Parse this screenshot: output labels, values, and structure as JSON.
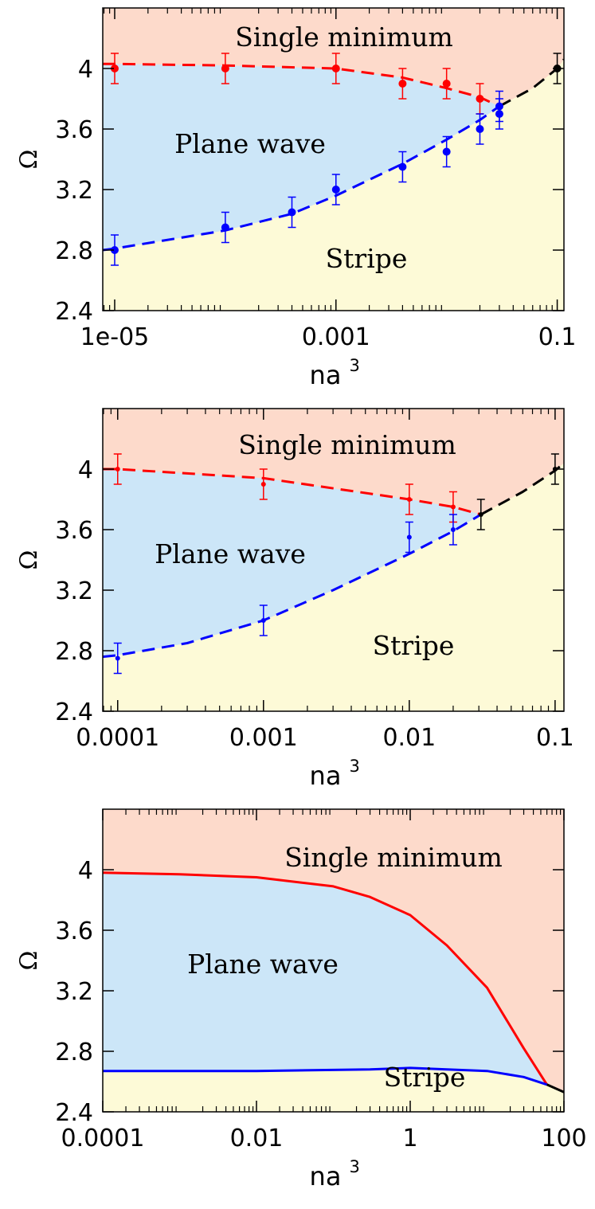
{
  "colors": {
    "single_minimum": "#FDDACB",
    "plane_wave": "#CCE6F8",
    "stripe": "#FDFAD7",
    "red": "#FF0000",
    "blue": "#0000FF",
    "black": "#000000"
  },
  "chart_data": [
    {
      "type": "scatter",
      "title": "",
      "xlabel": "na",
      "xlabel_sup": "3",
      "ylabel": "Ω",
      "xscale": "log",
      "xlim": [
        7.8e-06,
        0.115
      ],
      "ylim": [
        2.4,
        4.4
      ],
      "xticks": [
        1e-05,
        0.001,
        0.1
      ],
      "xtick_labels": [
        "1e-05",
        "0.001",
        "0.1"
      ],
      "yticks": [
        2.4,
        2.8,
        3.2,
        3.6,
        4
      ],
      "ytick_labels": [
        "2.4",
        "2.8",
        "3.2",
        "3.6",
        "4"
      ],
      "regions": {
        "top": "Single minimum",
        "middle": "Plane wave",
        "bottom": "Stripe"
      },
      "boundary_style": "dashed",
      "boundaries": {
        "upper": {
          "x": [
            7.8e-06,
            1e-05,
            0.0001,
            0.001,
            0.004,
            0.01,
            0.02,
            0.03
          ],
          "y": [
            4.03,
            4.03,
            4.02,
            4.0,
            3.94,
            3.87,
            3.81,
            3.75
          ]
        },
        "lower": {
          "x": [
            7.8e-06,
            1e-05,
            0.0001,
            0.0004,
            0.001,
            0.004,
            0.01,
            0.02,
            0.03
          ],
          "y": [
            2.8,
            2.81,
            2.93,
            3.04,
            3.16,
            3.37,
            3.53,
            3.66,
            3.75
          ]
        },
        "merged": {
          "x": [
            0.03,
            0.06,
            0.1,
            0.115
          ],
          "y": [
            3.75,
            3.87,
            4.0,
            4.06
          ]
        }
      },
      "series": [
        {
          "name": "upper",
          "color": "red",
          "x": [
            1e-05,
            0.0001,
            0.001,
            0.004,
            0.01,
            0.02
          ],
          "y": [
            4.0,
            4.0,
            4.0,
            3.9,
            3.9,
            3.8
          ],
          "err": [
            0.1,
            0.1,
            0.1,
            0.1,
            0.1,
            0.1
          ],
          "marker_r": 5
        },
        {
          "name": "lower",
          "color": "blue",
          "x": [
            1e-05,
            0.0001,
            0.0004,
            0.001,
            0.004,
            0.01,
            0.02,
            0.03,
            0.03
          ],
          "y": [
            2.8,
            2.95,
            3.05,
            3.2,
            3.35,
            3.45,
            3.6,
            3.7,
            3.75
          ],
          "err": [
            0.1,
            0.1,
            0.1,
            0.1,
            0.1,
            0.1,
            0.1,
            0.1,
            0.1
          ],
          "marker_r": 5
        },
        {
          "name": "merged",
          "color": "black",
          "x": [
            0.1
          ],
          "y": [
            4.0
          ],
          "err": [
            0.1
          ],
          "marker_r": 5
        }
      ]
    },
    {
      "type": "scatter",
      "title": "",
      "xlabel": "na",
      "xlabel_sup": "3",
      "ylabel": "Ω",
      "xscale": "log",
      "xlim": [
        7.9e-05,
        0.115
      ],
      "ylim": [
        2.4,
        4.4
      ],
      "xticks": [
        0.0001,
        0.001,
        0.01,
        0.1
      ],
      "xtick_labels": [
        "0.0001",
        "0.001",
        "0.01",
        "0.1"
      ],
      "yticks": [
        2.4,
        2.8,
        3.2,
        3.6,
        4
      ],
      "ytick_labels": [
        "2.4",
        "2.8",
        "3.2",
        "3.6",
        "4"
      ],
      "regions": {
        "top": "Single minimum",
        "middle": "Plane wave",
        "bottom": "Stripe"
      },
      "boundary_style": "dashed",
      "boundaries": {
        "upper": {
          "x": [
            7.9e-05,
            0.0001,
            0.001,
            0.01,
            0.02,
            0.031
          ],
          "y": [
            4.0,
            4.0,
            3.94,
            3.8,
            3.75,
            3.7
          ]
        },
        "lower": {
          "x": [
            7.9e-05,
            0.0001,
            0.0003,
            0.001,
            0.003,
            0.01,
            0.02,
            0.031
          ],
          "y": [
            2.76,
            2.77,
            2.85,
            3.0,
            3.2,
            3.44,
            3.59,
            3.7
          ]
        },
        "merged": {
          "x": [
            0.031,
            0.06,
            0.1,
            0.115
          ],
          "y": [
            3.7,
            3.85,
            3.99,
            4.04
          ]
        }
      },
      "series": [
        {
          "name": "upper",
          "color": "red",
          "x": [
            0.0001,
            0.001,
            0.01,
            0.02
          ],
          "y": [
            4.0,
            3.9,
            3.8,
            3.75
          ],
          "err": [
            0.1,
            0.1,
            0.1,
            0.1
          ],
          "marker_r": 3
        },
        {
          "name": "lower",
          "color": "blue",
          "x": [
            0.0001,
            0.001,
            0.01,
            0.02
          ],
          "y": [
            2.75,
            3.0,
            3.55,
            3.6
          ],
          "err": [
            0.1,
            0.1,
            0.1,
            0.1
          ],
          "marker_r": 3
        },
        {
          "name": "merged",
          "color": "black",
          "x": [
            0.031,
            0.1
          ],
          "y": [
            3.7,
            4.0
          ],
          "err": [
            0.1,
            0.1
          ],
          "marker_r": 3
        }
      ]
    },
    {
      "type": "line",
      "title": "",
      "xlabel": "na",
      "xlabel_sup": "3",
      "ylabel": "Ω",
      "xscale": "log",
      "xlim": [
        0.0001,
        100
      ],
      "ylim": [
        2.4,
        4.4
      ],
      "xticks": [
        0.0001,
        0.01,
        1,
        100
      ],
      "xtick_labels": [
        "0.0001",
        "0.01",
        "1",
        "100"
      ],
      "yticks": [
        2.4,
        2.8,
        3.2,
        3.6,
        4
      ],
      "ytick_labels": [
        "2.4",
        "2.8",
        "3.2",
        "3.6",
        "4"
      ],
      "regions": {
        "top": "Single minimum",
        "middle": "Plane wave",
        "bottom": "Stripe"
      },
      "boundary_style": "solid",
      "boundaries": {
        "upper": {
          "x": [
            0.0001,
            0.001,
            0.01,
            0.1,
            0.3,
            1,
            3,
            10,
            30,
            60
          ],
          "y": [
            3.98,
            3.97,
            3.95,
            3.89,
            3.82,
            3.7,
            3.5,
            3.22,
            2.82,
            2.58
          ]
        },
        "lower": {
          "x": [
            0.0001,
            0.01,
            0.3,
            1,
            3,
            10,
            30,
            60
          ],
          "y": [
            2.67,
            2.67,
            2.68,
            2.69,
            2.68,
            2.67,
            2.63,
            2.58
          ]
        },
        "merged": {
          "x": [
            60,
            100
          ],
          "y": [
            2.58,
            2.53
          ]
        }
      },
      "series": []
    }
  ]
}
